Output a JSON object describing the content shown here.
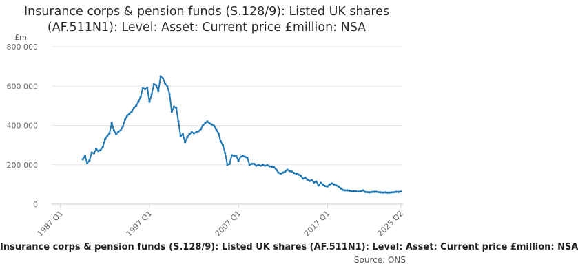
{
  "chart_data": {
    "type": "line",
    "title": "Insurance corps & pension funds (S.128/9): Listed UK shares (AF.511N1): Level: Asset: Current price £million: NSA",
    "ylabel": "£m",
    "xlabel": "",
    "ylim": [
      0,
      800000
    ],
    "yticks": [
      0,
      200000,
      400000,
      600000,
      800000
    ],
    "ytick_labels": [
      "0",
      "200 000",
      "400 000",
      "600 000",
      "800 000"
    ],
    "xticks": [
      1987,
      1997,
      2007,
      2017,
      2025.25
    ],
    "xtick_labels": [
      "1987 Q1",
      "1997 Q1",
      "2007 Q1",
      "2017 Q1",
      "2025 Q2"
    ],
    "xlim": [
      1986.0,
      2025.5
    ],
    "grid": "horizontal",
    "line_color": "#1f77b4",
    "x": [
      1989.5,
      1989.75,
      1990.0,
      1990.25,
      1990.5,
      1990.75,
      1991.0,
      1991.25,
      1991.5,
      1991.75,
      1992.0,
      1992.25,
      1992.5,
      1992.75,
      1993.0,
      1993.25,
      1993.5,
      1993.75,
      1994.0,
      1994.25,
      1994.5,
      1994.75,
      1995.0,
      1995.25,
      1995.5,
      1995.75,
      1996.0,
      1996.25,
      1996.5,
      1996.75,
      1997.0,
      1997.25,
      1997.5,
      1997.75,
      1998.0,
      1998.25,
      1998.5,
      1998.75,
      1999.0,
      1999.25,
      1999.5,
      1999.75,
      2000.0,
      2000.25,
      2000.5,
      2000.75,
      2001.0,
      2001.25,
      2001.5,
      2001.75,
      2002.0,
      2002.25,
      2002.5,
      2002.75,
      2003.0,
      2003.25,
      2003.5,
      2003.75,
      2004.0,
      2004.25,
      2004.5,
      2004.75,
      2005.0,
      2005.25,
      2005.5,
      2005.75,
      2006.0,
      2006.25,
      2006.5,
      2006.75,
      2007.0,
      2007.25,
      2007.5,
      2007.75,
      2008.0,
      2008.25,
      2008.5,
      2008.75,
      2009.0,
      2009.25,
      2009.5,
      2009.75,
      2010.0,
      2010.25,
      2010.5,
      2010.75,
      2011.0,
      2011.25,
      2011.5,
      2011.75,
      2012.0,
      2012.25,
      2012.5,
      2012.75,
      2013.0,
      2013.25,
      2013.5,
      2013.75,
      2014.0,
      2014.25,
      2014.5,
      2014.75,
      2015.0,
      2015.25,
      2015.5,
      2015.75,
      2016.0,
      2016.25,
      2016.5,
      2016.75,
      2017.0,
      2017.25,
      2017.5,
      2017.75,
      2018.0,
      2018.25,
      2018.5,
      2018.75,
      2019.0,
      2019.25,
      2019.5,
      2019.75,
      2020.0,
      2020.25,
      2020.5,
      2020.75,
      2021.0,
      2021.25,
      2021.5,
      2021.75,
      2022.0,
      2022.25,
      2022.5,
      2022.75,
      2023.0,
      2023.25,
      2023.5,
      2023.75,
      2024.0,
      2024.25,
      2024.5,
      2024.75,
      2025.0,
      2025.25
    ],
    "series": [
      {
        "values": [
          228000,
          245000,
          208000,
          222000,
          262000,
          258000,
          280000,
          270000,
          275000,
          290000,
          330000,
          345000,
          360000,
          412000,
          375000,
          355000,
          368000,
          375000,
          395000,
          430000,
          450000,
          460000,
          470000,
          490000,
          500000,
          520000,
          545000,
          590000,
          585000,
          592000,
          520000,
          560000,
          610000,
          605000,
          575000,
          650000,
          640000,
          615000,
          600000,
          560000,
          470000,
          495000,
          490000,
          420000,
          345000,
          355000,
          315000,
          340000,
          355000,
          365000,
          360000,
          365000,
          370000,
          380000,
          400000,
          410000,
          420000,
          410000,
          405000,
          398000,
          380000,
          360000,
          320000,
          300000,
          260000,
          200000,
          205000,
          248000,
          245000,
          245000,
          220000,
          240000,
          245000,
          240000,
          235000,
          200000,
          205000,
          205000,
          195000,
          200000,
          195000,
          200000,
          195000,
          198000,
          192000,
          190000,
          188000,
          175000,
          160000,
          155000,
          160000,
          165000,
          175000,
          168000,
          165000,
          158000,
          155000,
          150000,
          145000,
          130000,
          135000,
          125000,
          118000,
          122000,
          110000,
          115000,
          95000,
          108000,
          100000,
          92000,
          90000,
          100000,
          105000,
          100000,
          95000,
          90000,
          80000,
          72000,
          70000,
          70000,
          68000,
          65000,
          66000,
          65000,
          64000,
          65000,
          70000,
          62000,
          61000,
          60000,
          62000,
          63000,
          63000,
          61000,
          60000,
          59000,
          60000,
          58000,
          59000,
          60000,
          61000,
          63000,
          62000,
          64000
        ]
      }
    ]
  },
  "footer": {
    "title": "Insurance corps & pension funds (S.128/9): Listed UK shares (AF.511N1): Level: Asset: Current price £million: NSA",
    "source": "Source: ONS"
  }
}
